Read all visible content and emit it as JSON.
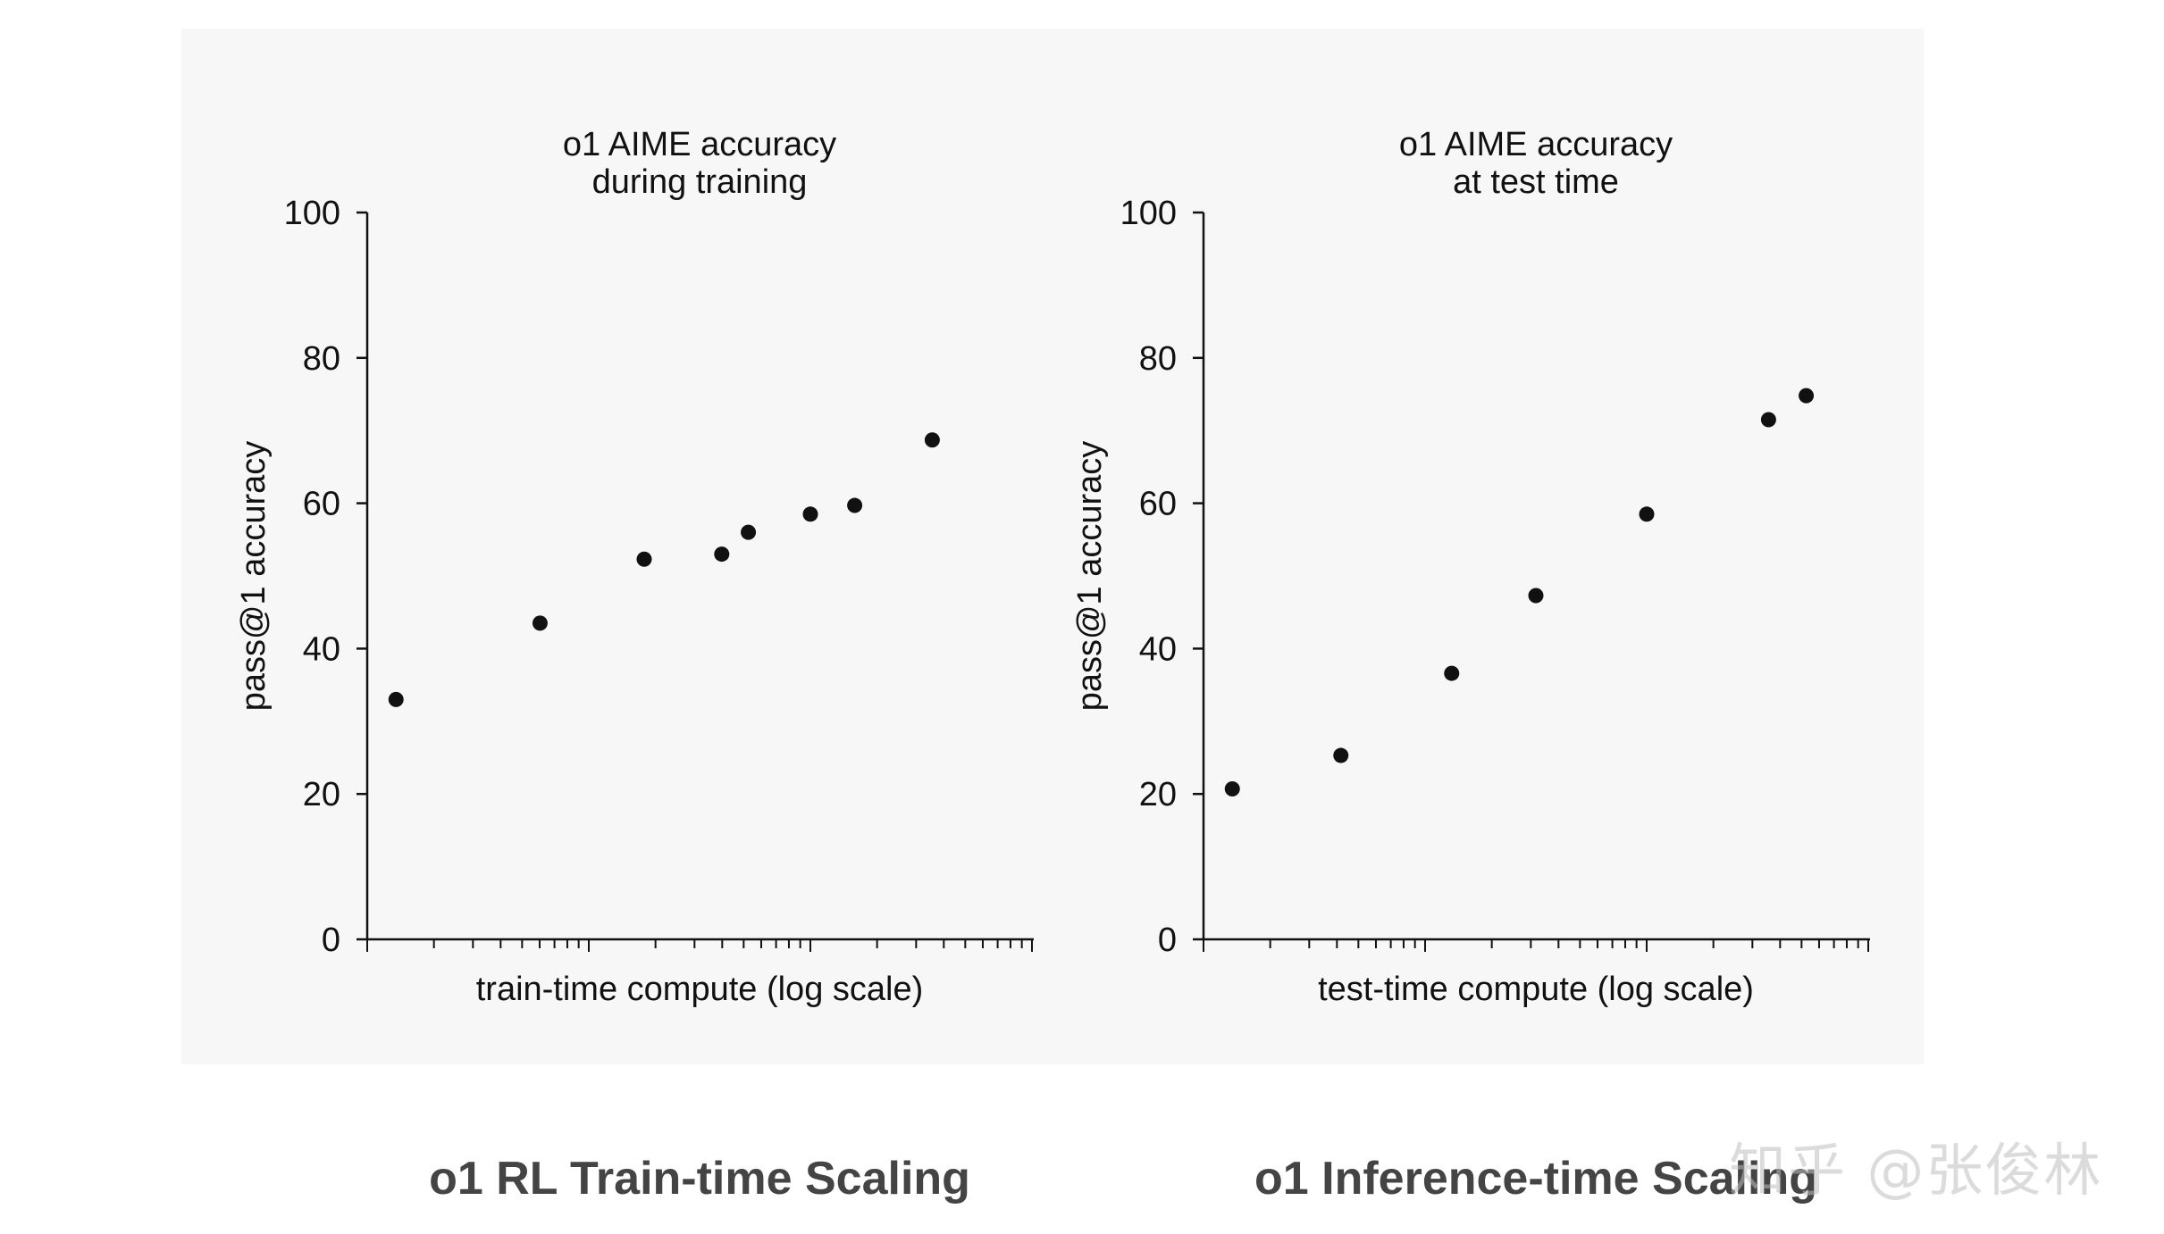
{
  "chart_data": [
    {
      "type": "scatter",
      "title": "o1 AIME accuracy\nduring training",
      "xlabel": "train-time compute (log scale)",
      "ylabel": "pass@1 accuracy",
      "ylim": [
        0,
        100
      ],
      "yticks": [
        "0",
        "20",
        "40",
        "60",
        "80",
        "100"
      ],
      "xscale": "log",
      "x_decades": 3,
      "x": [
        0.13,
        0.78,
        1.25,
        1.6,
        1.72,
        2.0,
        2.2,
        2.55
      ],
      "y": [
        33,
        43.5,
        52.3,
        53,
        56,
        58.5,
        59.7,
        68.7
      ],
      "color": "#111111",
      "caption": "o1 RL Train-time Scaling"
    },
    {
      "type": "scatter",
      "title": "o1 AIME accuracy\nat test time",
      "xlabel": "test-time compute (log scale)",
      "ylabel": "pass@1 accuracy",
      "ylim": [
        0,
        100
      ],
      "yticks": [
        "0",
        "20",
        "40",
        "60",
        "80",
        "100"
      ],
      "xscale": "log",
      "x_decades": 3,
      "x": [
        0.13,
        0.62,
        1.12,
        1.5,
        2.0,
        2.55,
        2.72
      ],
      "y": [
        20.7,
        25.3,
        36.6,
        47.3,
        58.5,
        71.5,
        74.8
      ],
      "color": "#111111",
      "caption": "o1 Inference-time Scaling"
    }
  ],
  "watermark": "知乎 @张俊林"
}
